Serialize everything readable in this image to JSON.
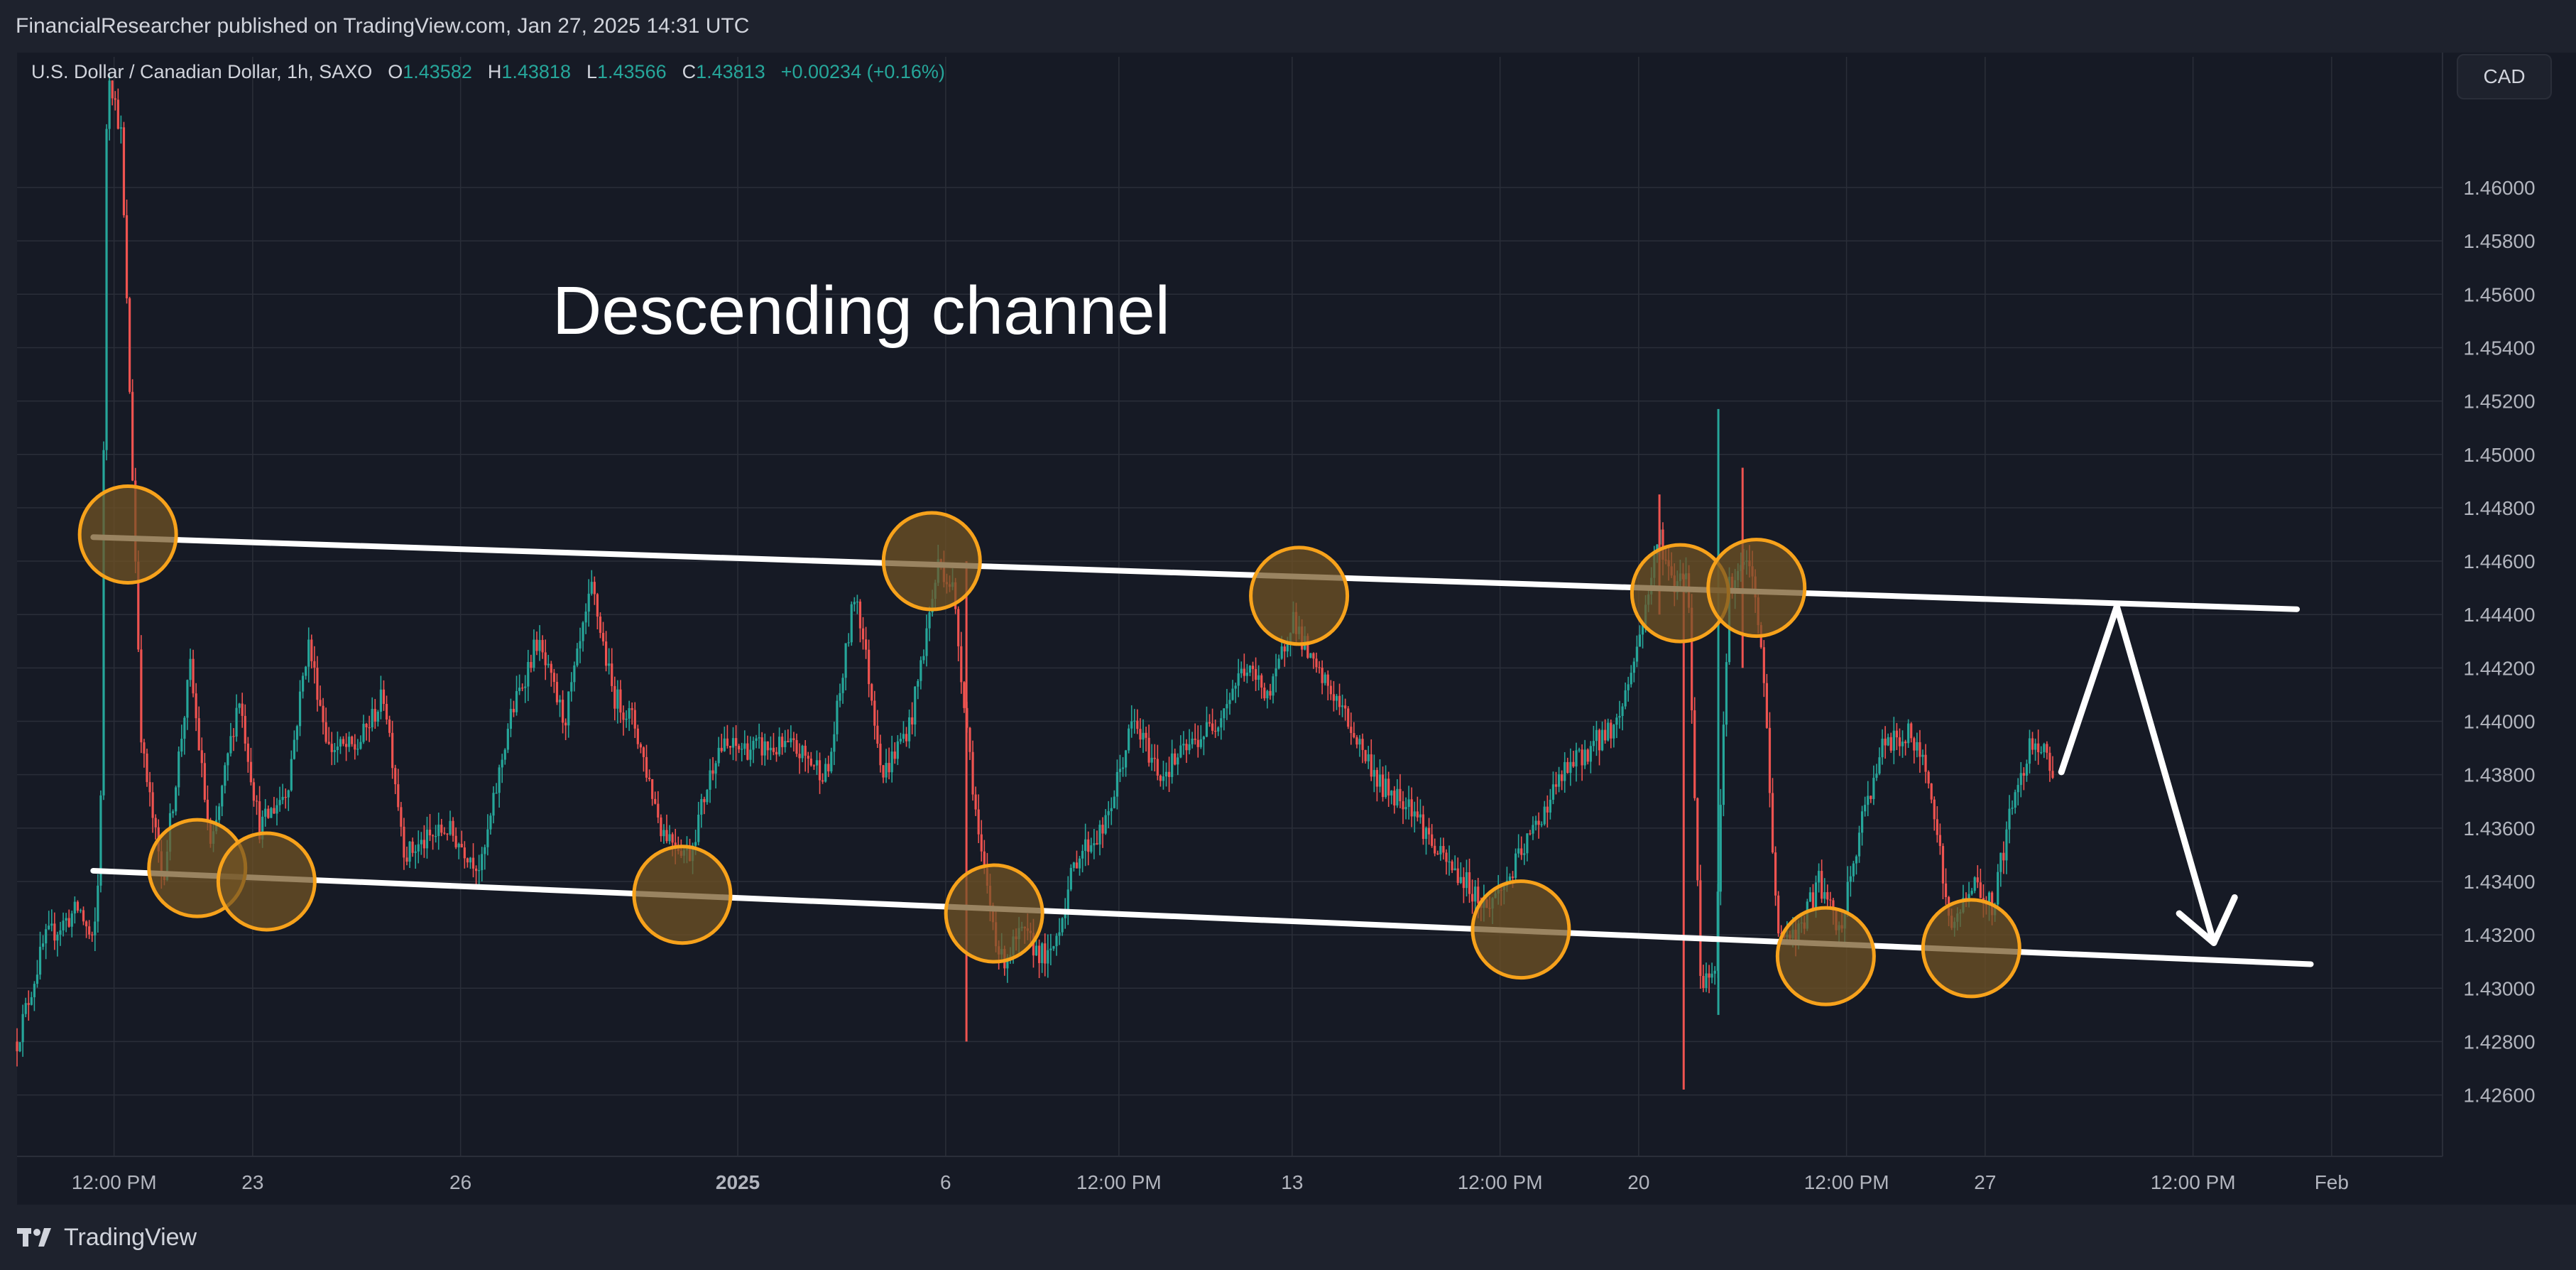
{
  "header": {
    "published": "FinancialResearcher published on TradingView.com, Jan 27, 2025 14:31 UTC"
  },
  "legend": {
    "symbol": "U.S. Dollar / Canadian Dollar, 1h, SAXO",
    "o_label": "O",
    "o_value": "1.43582",
    "h_label": "H",
    "h_value": "1.43818",
    "l_label": "L",
    "l_value": "1.43566",
    "c_label": "C",
    "c_value": "1.43813",
    "change": "+0.00234 (+0.16%)"
  },
  "currency_button": "CAD",
  "footer": {
    "brand": "TradingView"
  },
  "colors": {
    "up": "#26a69a",
    "down": "#ef5350",
    "grid": "#2a2e39",
    "text": "#b2b5be",
    "circle_fill": "#735424",
    "circle_stroke": "#f7a21b"
  },
  "chart_data": {
    "type": "candlestick",
    "annotation_text": "Descending channel",
    "y_ticks": [
      "1.42600",
      "1.42800",
      "1.43000",
      "1.43200",
      "1.43400",
      "1.43600",
      "1.43800",
      "1.44000",
      "1.44200",
      "1.44400",
      "1.44600",
      "1.44800",
      "1.45000",
      "1.45200",
      "1.45400",
      "1.45600",
      "1.45800",
      "1.46000"
    ],
    "y_range": [
      1.4237,
      1.4633
    ],
    "x_range": [
      -0.9,
      34.1
    ],
    "x_ticks": [
      {
        "label": "12:00 PM",
        "t": 0.5
      },
      {
        "label": "23",
        "t": 2.5
      },
      {
        "label": "26",
        "t": 5.5
      },
      {
        "label": "2025",
        "t": 9.5,
        "bold": true
      },
      {
        "label": "6",
        "t": 12.5
      },
      {
        "label": "12:00 PM",
        "t": 15
      },
      {
        "label": "13",
        "t": 17.5
      },
      {
        "label": "12:00 PM",
        "t": 20.5
      },
      {
        "label": "20",
        "t": 22.5
      },
      {
        "label": "12:00 PM",
        "t": 25.5
      },
      {
        "label": "27",
        "t": 27.5
      },
      {
        "label": "12:00 PM",
        "t": 30.5
      },
      {
        "label": "Feb",
        "t": 32.5
      }
    ],
    "price_path": [
      [
        -0.9,
        1.428
      ],
      [
        -0.5,
        1.4318
      ],
      [
        0.0,
        1.433
      ],
      [
        0.2,
        1.4315
      ],
      [
        0.3,
        1.435
      ],
      [
        0.4,
        1.4648
      ],
      [
        0.6,
        1.462
      ],
      [
        0.9,
        1.439
      ],
      [
        1.2,
        1.434
      ],
      [
        1.6,
        1.442
      ],
      [
        1.9,
        1.435
      ],
      [
        2.3,
        1.441
      ],
      [
        2.6,
        1.436
      ],
      [
        3.0,
        1.4375
      ],
      [
        3.3,
        1.443
      ],
      [
        3.6,
        1.439
      ],
      [
        4.0,
        1.439
      ],
      [
        4.4,
        1.441
      ],
      [
        4.7,
        1.435
      ],
      [
        5.3,
        1.436
      ],
      [
        5.8,
        1.4345
      ],
      [
        6.2,
        1.44
      ],
      [
        6.6,
        1.443
      ],
      [
        7.0,
        1.44
      ],
      [
        7.4,
        1.445
      ],
      [
        7.7,
        1.441
      ],
      [
        8.0,
        1.44
      ],
      [
        8.4,
        1.436
      ],
      [
        8.8,
        1.435
      ],
      [
        9.2,
        1.439
      ],
      [
        9.5,
        1.439
      ],
      [
        10.3,
        1.439
      ],
      [
        10.8,
        1.438
      ],
      [
        11.2,
        1.445
      ],
      [
        11.6,
        1.438
      ],
      [
        12.0,
        1.44
      ],
      [
        12.4,
        1.446
      ],
      [
        12.6,
        1.445
      ],
      [
        12.8,
        1.44
      ],
      [
        13.0,
        1.435
      ],
      [
        13.3,
        1.431
      ],
      [
        13.6,
        1.432
      ],
      [
        14.0,
        1.431
      ],
      [
        14.4,
        1.435
      ],
      [
        14.8,
        1.436
      ],
      [
        15.2,
        1.44
      ],
      [
        15.6,
        1.438
      ],
      [
        16.0,
        1.439
      ],
      [
        16.4,
        1.44
      ],
      [
        16.8,
        1.442
      ],
      [
        17.2,
        1.441
      ],
      [
        17.5,
        1.444
      ],
      [
        17.8,
        1.442
      ],
      [
        18.1,
        1.441
      ],
      [
        18.5,
        1.439
      ],
      [
        18.8,
        1.4375
      ],
      [
        19.2,
        1.437
      ],
      [
        19.6,
        1.435
      ],
      [
        20.0,
        1.434
      ],
      [
        20.3,
        1.433
      ],
      [
        20.6,
        1.434
      ],
      [
        21.0,
        1.436
      ],
      [
        21.4,
        1.438
      ],
      [
        21.8,
        1.439
      ],
      [
        22.2,
        1.44
      ],
      [
        22.5,
        1.443
      ],
      [
        22.8,
        1.447
      ],
      [
        23.0,
        1.445
      ],
      [
        23.2,
        1.446
      ],
      [
        23.4,
        1.43
      ],
      [
        23.6,
        1.431
      ],
      [
        23.8,
        1.445
      ],
      [
        24.1,
        1.446
      ],
      [
        24.3,
        1.442
      ],
      [
        24.5,
        1.432
      ],
      [
        24.8,
        1.432
      ],
      [
        25.1,
        1.434
      ],
      [
        25.4,
        1.432
      ],
      [
        25.7,
        1.436
      ],
      [
        26.0,
        1.439
      ],
      [
        26.4,
        1.4395
      ],
      [
        26.7,
        1.438
      ],
      [
        27.0,
        1.432
      ],
      [
        27.3,
        1.434
      ],
      [
        27.6,
        1.433
      ],
      [
        27.9,
        1.437
      ],
      [
        28.2,
        1.4395
      ],
      [
        28.5,
        1.43813
      ]
    ],
    "spikes": [
      {
        "t": 23.15,
        "low": 1.4262,
        "high": 1.4455,
        "color": "down"
      },
      {
        "t": 23.65,
        "low": 1.429,
        "high": 1.4517,
        "color": "up"
      },
      {
        "t": 22.8,
        "low": 1.444,
        "high": 1.4485,
        "color": "down"
      },
      {
        "t": 12.8,
        "low": 1.428,
        "high": 1.446,
        "color": "down"
      },
      {
        "t": 24.0,
        "low": 1.442,
        "high": 1.4495,
        "color": "down"
      }
    ],
    "channel_upper": [
      [
        0.2,
        1.4469
      ],
      [
        32.0,
        1.4442
      ]
    ],
    "channel_lower": [
      [
        0.2,
        1.4344
      ],
      [
        32.2,
        1.4309
      ]
    ],
    "touch_points": [
      {
        "t": 0.7,
        "price": 1.447
      },
      {
        "t": 1.7,
        "price": 1.4345
      },
      {
        "t": 2.7,
        "price": 1.434
      },
      {
        "t": 8.7,
        "price": 1.4335
      },
      {
        "t": 12.3,
        "price": 1.446
      },
      {
        "t": 13.2,
        "price": 1.4328
      },
      {
        "t": 17.6,
        "price": 1.4447
      },
      {
        "t": 20.8,
        "price": 1.4322
      },
      {
        "t": 23.1,
        "price": 1.4448
      },
      {
        "t": 24.2,
        "price": 1.445
      },
      {
        "t": 25.2,
        "price": 1.4312
      },
      {
        "t": 27.3,
        "price": 1.4315
      }
    ],
    "projection": [
      [
        28.6,
        1.4381
      ],
      [
        29.4,
        1.4443
      ],
      [
        30.8,
        1.4317
      ]
    ],
    "projection_head": [
      [
        30.3,
        1.4328
      ],
      [
        30.8,
        1.4317
      ],
      [
        31.1,
        1.4334
      ]
    ],
    "ylabel": "",
    "xlabel": ""
  }
}
